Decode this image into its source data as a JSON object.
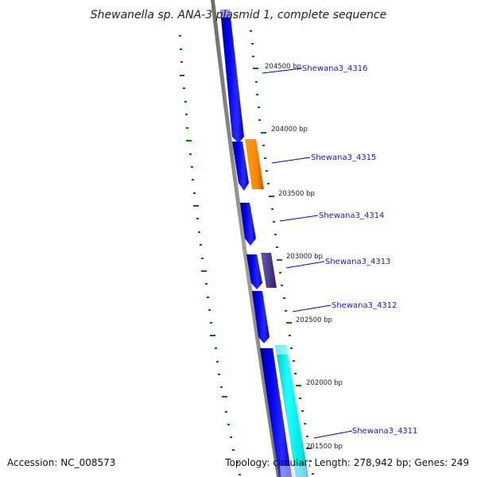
{
  "title": "Shewanella sp. ANA-3 plasmid 1, complete sequence",
  "footer": {
    "accession": "Accession: NC_008573",
    "stats": "Topology: circular; Length: 278,942 bp; Genes: 249"
  },
  "ticks": [
    "204500 bp",
    "204000 bp",
    "203500 bp",
    "203000 bp",
    "202500 bp",
    "202000 bp",
    "201500 bp"
  ],
  "genes": [
    {
      "name": "Shewana3_4316",
      "color": "#0000ee"
    },
    {
      "name": "Shewana3_4315",
      "color": "#ff8800"
    },
    {
      "name": "Shewana3_4314",
      "color": "#0000ee"
    },
    {
      "name": "Shewana3_4313",
      "color": "#4a3a8a"
    },
    {
      "name": "Shewana3_4312",
      "color": "#0000ee"
    },
    {
      "name": "Shewana3_4311",
      "color": "#00e0e0"
    }
  ],
  "colors": {
    "backbone": "#8a8a8a",
    "tick_marks": "#007700",
    "label_lines": "#0000cc",
    "forward_strand": "#0000ee",
    "reverse_strand": "#00e0e0"
  }
}
